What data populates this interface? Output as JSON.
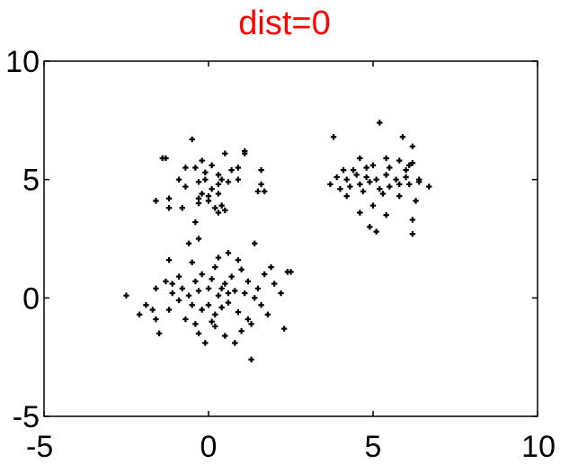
{
  "chart_data": {
    "type": "scatter",
    "title": "dist=0",
    "title_color": "#ff0000",
    "marker_color": "#000000",
    "marker": "plus",
    "xlabel": "",
    "ylabel": "",
    "xlim": [
      -5,
      10
    ],
    "ylim": [
      -5,
      10
    ],
    "xticks": [
      -5,
      0,
      5,
      10
    ],
    "yticks": [
      -5,
      0,
      5,
      10
    ],
    "grid": false,
    "series": [
      {
        "points": [
          [
            -0.5,
            6.7
          ],
          [
            -1.3,
            5.9
          ],
          [
            -1.4,
            5.9
          ],
          [
            -0.7,
            5.5
          ],
          [
            -0.4,
            5.5
          ],
          [
            0.1,
            5.6
          ],
          [
            0.5,
            6.1
          ],
          [
            1.1,
            6.1
          ],
          [
            1.1,
            6.2
          ],
          [
            -0.1,
            5.3
          ],
          [
            0.3,
            5.2
          ],
          [
            0.7,
            5.4
          ],
          [
            0.9,
            5.5
          ],
          [
            1.6,
            5.4
          ],
          [
            -0.9,
            5.0
          ],
          [
            -0.3,
            4.9
          ],
          [
            -0.7,
            4.7
          ],
          [
            0.3,
            4.8
          ],
          [
            0.6,
            4.9
          ],
          [
            1.6,
            4.8
          ],
          [
            -0.2,
            4.4
          ],
          [
            0.1,
            4.6
          ],
          [
            0.3,
            4.4
          ],
          [
            -1.6,
            4.1
          ],
          [
            -1.2,
            4.2
          ],
          [
            -0.3,
            4.2
          ],
          [
            0.0,
            4.3
          ],
          [
            1.5,
            4.5
          ],
          [
            1.7,
            4.5
          ],
          [
            -0.3,
            4.0
          ],
          [
            0.0,
            4.1
          ],
          [
            -1.2,
            3.8
          ],
          [
            -0.8,
            3.8
          ],
          [
            0.2,
            3.8
          ],
          [
            0.4,
            3.9
          ],
          [
            0.5,
            3.7
          ],
          [
            0.3,
            3.6
          ],
          [
            -0.4,
            3.2
          ],
          [
            -0.1,
            5.0
          ],
          [
            0.9,
            5.0
          ],
          [
            -0.2,
            5.8
          ],
          [
            0.4,
            5.0
          ],
          [
            -2.5,
            0.1
          ],
          [
            -2.1,
            -0.7
          ],
          [
            -1.7,
            -0.5
          ],
          [
            -1.5,
            -1.5
          ],
          [
            -1.6,
            0.4
          ],
          [
            -1.3,
            0.7
          ],
          [
            -1.1,
            0.2
          ],
          [
            -1.6,
            -0.9
          ],
          [
            -1.2,
            -0.5
          ],
          [
            -1.1,
            0.6
          ],
          [
            -0.9,
            0.9
          ],
          [
            -0.8,
            0.4
          ],
          [
            -0.9,
            -0.1
          ],
          [
            -0.5,
            -0.3
          ],
          [
            -0.3,
            0.3
          ],
          [
            -0.4,
            0.7
          ],
          [
            -0.2,
            1.0
          ],
          [
            -0.2,
            -0.5
          ],
          [
            0.0,
            -0.3
          ],
          [
            0.0,
            0.4
          ],
          [
            0.1,
            0.8
          ],
          [
            0.2,
            1.3
          ],
          [
            0.2,
            -0.7
          ],
          [
            0.3,
            0.1
          ],
          [
            0.4,
            0.4
          ],
          [
            0.5,
            0.6
          ],
          [
            0.6,
            0.2
          ],
          [
            0.6,
            -0.2
          ],
          [
            0.7,
            0.9
          ],
          [
            0.8,
            0.3
          ],
          [
            0.9,
            -0.6
          ],
          [
            1.0,
            1.2
          ],
          [
            1.1,
            0.2
          ],
          [
            1.2,
            -0.9
          ],
          [
            1.3,
            -1.1
          ],
          [
            1.4,
            0.0
          ],
          [
            1.5,
            0.4
          ],
          [
            1.6,
            -0.3
          ],
          [
            1.7,
            1.0
          ],
          [
            1.8,
            -0.7
          ],
          [
            1.9,
            1.3
          ],
          [
            2.0,
            0.6
          ],
          [
            2.2,
            0.2
          ],
          [
            2.4,
            1.1
          ],
          [
            2.5,
            1.1
          ],
          [
            -0.3,
            -1.5
          ],
          [
            -0.1,
            -1.9
          ],
          [
            0.2,
            -1.2
          ],
          [
            0.5,
            -1.6
          ],
          [
            0.8,
            -1.9
          ],
          [
            1.0,
            -1.4
          ],
          [
            1.3,
            -2.6
          ],
          [
            2.3,
            -1.3
          ],
          [
            -0.6,
            2.3
          ],
          [
            -0.3,
            2.5
          ],
          [
            0.6,
            1.9
          ],
          [
            1.4,
            2.3
          ],
          [
            -1.2,
            1.6
          ],
          [
            -0.5,
            1.5
          ],
          [
            0.3,
            1.7
          ],
          [
            0.9,
            1.6
          ],
          [
            -0.7,
            -0.9
          ],
          [
            0.1,
            -1.0
          ],
          [
            -1.9,
            -0.3
          ],
          [
            -0.6,
            0.1
          ],
          [
            0.4,
            -0.4
          ],
          [
            1.2,
            0.7
          ],
          [
            -0.4,
            -1.1
          ],
          [
            3.8,
            6.8
          ],
          [
            5.2,
            7.4
          ],
          [
            5.9,
            6.8
          ],
          [
            6.2,
            6.4
          ],
          [
            4.6,
            5.9
          ],
          [
            5.4,
            5.9
          ],
          [
            5.8,
            5.8
          ],
          [
            6.2,
            5.7
          ],
          [
            4.1,
            5.4
          ],
          [
            4.4,
            5.4
          ],
          [
            4.8,
            5.5
          ],
          [
            5.0,
            5.6
          ],
          [
            5.5,
            5.5
          ],
          [
            6.0,
            5.4
          ],
          [
            6.1,
            5.6
          ],
          [
            3.9,
            5.1
          ],
          [
            4.2,
            5.0
          ],
          [
            4.5,
            5.2
          ],
          [
            4.8,
            5.1
          ],
          [
            5.1,
            5.0
          ],
          [
            5.4,
            5.2
          ],
          [
            5.7,
            5.0
          ],
          [
            6.0,
            5.1
          ],
          [
            6.4,
            5.0
          ],
          [
            3.7,
            4.8
          ],
          [
            4.0,
            4.6
          ],
          [
            4.3,
            4.7
          ],
          [
            4.6,
            4.8
          ],
          [
            4.9,
            4.9
          ],
          [
            5.2,
            4.6
          ],
          [
            5.5,
            4.7
          ],
          [
            5.8,
            4.8
          ],
          [
            6.1,
            4.8
          ],
          [
            6.4,
            4.9
          ],
          [
            6.7,
            4.7
          ],
          [
            4.2,
            4.3
          ],
          [
            4.7,
            4.5
          ],
          [
            5.3,
            4.4
          ],
          [
            5.8,
            4.3
          ],
          [
            6.3,
            4.1
          ],
          [
            4.6,
            3.6
          ],
          [
            5.0,
            3.9
          ],
          [
            5.4,
            3.5
          ],
          [
            6.2,
            3.3
          ],
          [
            4.9,
            3.0
          ],
          [
            5.1,
            2.8
          ],
          [
            6.2,
            2.7
          ]
        ]
      }
    ]
  }
}
